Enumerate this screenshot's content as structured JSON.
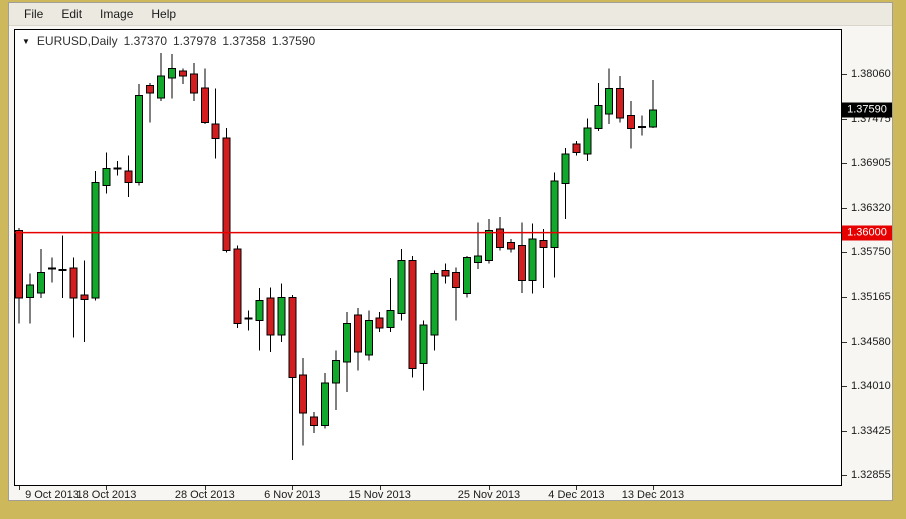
{
  "window": {
    "menu": [
      "File",
      "Edit",
      "Image",
      "Help"
    ]
  },
  "chart_header": {
    "dropdown_glyph": "▼",
    "symbol_period": "EURUSD,Daily",
    "open": "1.37370",
    "high": "1.37978",
    "low": "1.37358",
    "close": "1.37590"
  },
  "colors": {
    "frame_gold": "#CDB95B",
    "bull": "#12A82B",
    "bear": "#D21E1E",
    "wick": "#000000",
    "hline": "#E60000",
    "current_price_bg": "#000000",
    "hline_price_bg": "#E60000"
  },
  "chart_data": {
    "type": "candlestick",
    "title": "EURUSD,Daily",
    "last_quote_ohlc": [
      1.3737,
      1.37978,
      1.37358,
      1.3759
    ],
    "ylim": [
      1.32725,
      1.3863
    ],
    "grid": false,
    "y_ticks": [
      "1.38060",
      "1.37475",
      "1.36905",
      "1.36320",
      "1.35750",
      "1.35165",
      "1.34580",
      "1.34010",
      "1.33425",
      "1.32855"
    ],
    "current_price_label": "1.37590",
    "hline": {
      "price": 1.36,
      "label": "1.36000"
    },
    "x_ticks": [
      {
        "index": 0,
        "label": "9 Oct 2013"
      },
      {
        "index": 8,
        "label": "18 Oct 2013"
      },
      {
        "index": 17,
        "label": "28 Oct 2013"
      },
      {
        "index": 25,
        "label": "6 Nov 2013"
      },
      {
        "index": 33,
        "label": "15 Nov 2013"
      },
      {
        "index": 43,
        "label": "25 Nov 2013"
      },
      {
        "index": 51,
        "label": "4 Dec 2013"
      },
      {
        "index": 58,
        "label": "13 Dec 2013"
      }
    ],
    "candles": [
      [
        1.3603,
        1.3606,
        1.3482,
        1.3515
      ],
      [
        1.3516,
        1.3547,
        1.3482,
        1.3532
      ],
      [
        1.3522,
        1.3579,
        1.3515,
        1.3548
      ],
      [
        1.3553,
        1.3568,
        1.3535,
        1.3554
      ],
      [
        1.3551,
        1.3596,
        1.3515,
        1.3552
      ],
      [
        1.3554,
        1.3568,
        1.3464,
        1.3515
      ],
      [
        1.3519,
        1.3564,
        1.3458,
        1.3513
      ],
      [
        1.3515,
        1.368,
        1.3512,
        1.3665
      ],
      [
        1.3661,
        1.3704,
        1.3651,
        1.3683
      ],
      [
        1.3683,
        1.3693,
        1.3674,
        1.3684
      ],
      [
        1.368,
        1.37,
        1.3646,
        1.3665
      ],
      [
        1.3665,
        1.3793,
        1.3661,
        1.3778
      ],
      [
        1.3791,
        1.3794,
        1.3743,
        1.3781
      ],
      [
        1.3775,
        1.3833,
        1.3771,
        1.3803
      ],
      [
        1.3801,
        1.3832,
        1.3774,
        1.3813
      ],
      [
        1.381,
        1.3813,
        1.3793,
        1.3803
      ],
      [
        1.3806,
        1.382,
        1.3771,
        1.3781
      ],
      [
        1.3788,
        1.3813,
        1.3741,
        1.3743
      ],
      [
        1.3741,
        1.3787,
        1.3696,
        1.3722
      ],
      [
        1.3723,
        1.3736,
        1.3574,
        1.3577
      ],
      [
        1.3579,
        1.3583,
        1.3476,
        1.3482
      ],
      [
        1.3488,
        1.3499,
        1.3473,
        1.3489
      ],
      [
        1.3486,
        1.3528,
        1.3447,
        1.3512
      ],
      [
        1.3515,
        1.3529,
        1.3445,
        1.3467
      ],
      [
        1.3467,
        1.3534,
        1.3458,
        1.3516
      ],
      [
        1.3516,
        1.3519,
        1.3305,
        1.3412
      ],
      [
        1.3415,
        1.3437,
        1.3324,
        1.3366
      ],
      [
        1.3361,
        1.3367,
        1.334,
        1.335
      ],
      [
        1.335,
        1.3418,
        1.3346,
        1.3405
      ],
      [
        1.3405,
        1.3447,
        1.337,
        1.3434
      ],
      [
        1.3432,
        1.3497,
        1.3393,
        1.3482
      ],
      [
        1.3493,
        1.3502,
        1.3421,
        1.3445
      ],
      [
        1.3441,
        1.3499,
        1.3434,
        1.3486
      ],
      [
        1.3489,
        1.3497,
        1.3471,
        1.3476
      ],
      [
        1.3477,
        1.3541,
        1.3471,
        1.3499
      ],
      [
        1.3495,
        1.3579,
        1.3486,
        1.3564
      ],
      [
        1.3564,
        1.357,
        1.3412,
        1.3424
      ],
      [
        1.343,
        1.3486,
        1.3395,
        1.348
      ],
      [
        1.3467,
        1.3551,
        1.3447,
        1.3547
      ],
      [
        1.3551,
        1.356,
        1.3534,
        1.3544
      ],
      [
        1.3548,
        1.3555,
        1.3486,
        1.3529
      ],
      [
        1.3521,
        1.357,
        1.3516,
        1.3568
      ],
      [
        1.3561,
        1.3613,
        1.3553,
        1.357
      ],
      [
        1.3564,
        1.3618,
        1.356,
        1.3603
      ],
      [
        1.3605,
        1.362,
        1.3577,
        1.3581
      ],
      [
        1.3587,
        1.3592,
        1.3574,
        1.3579
      ],
      [
        1.3583,
        1.3613,
        1.3522,
        1.3538
      ],
      [
        1.3538,
        1.3612,
        1.3521,
        1.3592
      ],
      [
        1.359,
        1.3605,
        1.3528,
        1.3581
      ],
      [
        1.3581,
        1.3678,
        1.3542,
        1.3667
      ],
      [
        1.3664,
        1.371,
        1.3618,
        1.3702
      ],
      [
        1.3715,
        1.3719,
        1.37,
        1.3704
      ],
      [
        1.3702,
        1.3748,
        1.3693,
        1.3736
      ],
      [
        1.3735,
        1.3794,
        1.3732,
        1.3765
      ],
      [
        1.3754,
        1.3813,
        1.3741,
        1.3787
      ],
      [
        1.3787,
        1.3803,
        1.3743,
        1.3749
      ],
      [
        1.3752,
        1.3771,
        1.3709,
        1.3735
      ],
      [
        1.3737,
        1.3752,
        1.3726,
        1.3738
      ],
      [
        1.3737,
        1.37978,
        1.37358,
        1.3759
      ]
    ]
  }
}
